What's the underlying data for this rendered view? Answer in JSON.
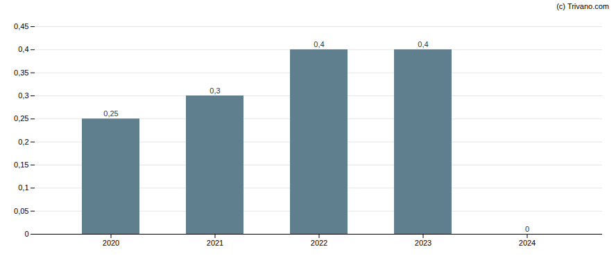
{
  "chart_data": {
    "type": "bar",
    "annotation": "(c) Trivano.com",
    "categories": [
      "2020",
      "2021",
      "2022",
      "2023",
      "2024"
    ],
    "values": [
      0.25,
      0.3,
      0.4,
      0.4,
      0.0
    ],
    "value_labels": [
      "0,25",
      "0,3",
      "0,4",
      "0,4",
      "0"
    ],
    "data_labels": true,
    "color": "#5f7f8f",
    "ylim": [
      0,
      0.45
    ],
    "yticks": [
      0,
      {
        "value": 0.05,
        "label": "0,05"
      },
      {
        "value": 0.1,
        "label": "0,1"
      },
      {
        "value": 0.15,
        "label": "0,15"
      },
      {
        "value": 0.2,
        "label": "0,2"
      },
      {
        "value": 0.25,
        "label": "0,25"
      },
      {
        "value": 0.3,
        "label": "0,3"
      },
      {
        "value": 0.35,
        "label": "0,35"
      },
      {
        "value": 0.4,
        "label": "0,4"
      },
      {
        "value": 0.45,
        "label": "0,45"
      }
    ],
    "grid": true
  }
}
